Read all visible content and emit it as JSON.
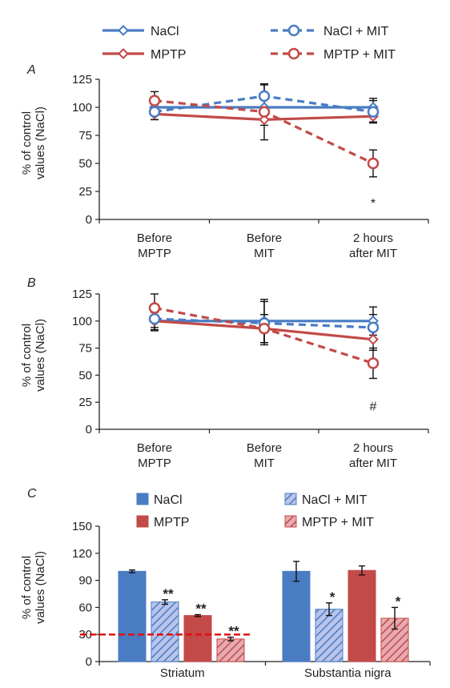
{
  "colors": {
    "nacl": "#4a7cc4",
    "mptp": "#c24a48",
    "nacl_mit_fill": "#b9c4ea",
    "mptp_mit_fill": "#e7aab0",
    "hatch": "#ffffff",
    "reference_line": "#e01010",
    "axis": "#222222"
  },
  "chart_data": [
    {
      "type": "line",
      "panel_label": "A",
      "ylabel": "% of control values (NaCl)",
      "ylim": [
        0,
        125
      ],
      "yticks": [
        0,
        25,
        50,
        75,
        100,
        125
      ],
      "categories": [
        "Before MPTP",
        "Before MIT",
        "2 hours after MIT"
      ],
      "category_lines": [
        [
          "Before",
          "MPTP"
        ],
        [
          "Before",
          "MIT"
        ],
        [
          "2 hours",
          "after MIT"
        ]
      ],
      "legend": [
        "NaCl",
        "MPTP",
        "NaCl + MIT",
        "MPTP + MIT"
      ],
      "grid": false,
      "series": [
        {
          "name": "NaCl",
          "color": "nacl",
          "dashed": false,
          "marker": "diamond",
          "values": [
            100,
            100,
            100
          ],
          "errors": [
            7,
            7,
            8
          ]
        },
        {
          "name": "MPTP",
          "color": "mptp",
          "dashed": false,
          "marker": "diamond",
          "values": [
            94,
            89,
            92
          ],
          "errors": [
            5,
            5,
            5
          ]
        },
        {
          "name": "NaCl + MIT",
          "color": "nacl",
          "dashed": true,
          "marker": "circle",
          "values": [
            96,
            110,
            96
          ],
          "errors": [
            7,
            10,
            10
          ]
        },
        {
          "name": "MPTP + MIT",
          "color": "mptp",
          "dashed": true,
          "marker": "circle",
          "values": [
            106,
            96,
            50
          ],
          "errors": [
            8,
            25,
            12
          ]
        }
      ],
      "annotations": [
        {
          "text": "*",
          "category": 2,
          "value": 15
        }
      ]
    },
    {
      "type": "line",
      "panel_label": "B",
      "ylabel": "% of control values (NaCl)",
      "ylim": [
        0,
        125
      ],
      "yticks": [
        0,
        25,
        50,
        75,
        100,
        125
      ],
      "categories": [
        "Before MPTP",
        "Before MIT",
        "2 hours after MIT"
      ],
      "category_lines": [
        [
          "Before",
          "MPTP"
        ],
        [
          "Before",
          "MIT"
        ],
        [
          "2 hours",
          "after MIT"
        ]
      ],
      "grid": false,
      "series": [
        {
          "name": "NaCl",
          "color": "nacl",
          "dashed": false,
          "marker": "diamond",
          "values": [
            100,
            100,
            100
          ],
          "errors": [
            8,
            20,
            13
          ]
        },
        {
          "name": "MPTP",
          "color": "mptp",
          "dashed": false,
          "marker": "diamond",
          "values": [
            100,
            93,
            83
          ],
          "errors": [
            9,
            13,
            10
          ]
        },
        {
          "name": "NaCl + MIT",
          "color": "nacl",
          "dashed": true,
          "marker": "circle",
          "values": [
            102,
            98,
            94
          ],
          "errors": [
            8,
            20,
            12
          ]
        },
        {
          "name": "MPTP + MIT",
          "color": "mptp",
          "dashed": true,
          "marker": "circle",
          "values": [
            112,
            93,
            61
          ],
          "errors": [
            13,
            13,
            14
          ]
        }
      ],
      "annotations": [
        {
          "text": "#",
          "category": 2,
          "value": 22
        }
      ]
    },
    {
      "type": "bar",
      "panel_label": "C",
      "ylabel": "% of control values (NaCl)",
      "ylim": [
        0,
        150
      ],
      "yticks": [
        0,
        30,
        60,
        90,
        120,
        150
      ],
      "categories": [
        "Striatum",
        "Substantia nigra"
      ],
      "legend": [
        "NaCl",
        "MPTP",
        "NaCl + MIT",
        "MPTP + MIT"
      ],
      "grid": false,
      "reference_line": 30,
      "series": [
        {
          "name": "NaCl",
          "fill": "nacl",
          "hatched": false,
          "values": [
            100,
            100
          ],
          "errors": [
            1.5,
            11
          ],
          "labels": [
            "",
            ""
          ]
        },
        {
          "name": "NaCl + MIT",
          "fill": "nacl_mit_fill",
          "hatched": true,
          "values": [
            66,
            58
          ],
          "errors": [
            2.5,
            7
          ],
          "labels": [
            "**",
            "*"
          ]
        },
        {
          "name": "MPTP",
          "fill": "mptp",
          "hatched": false,
          "values": [
            51,
            101
          ],
          "errors": [
            1,
            5
          ],
          "labels": [
            "**",
            ""
          ]
        },
        {
          "name": "MPTP + MIT",
          "fill": "mptp_mit_fill",
          "hatched": true,
          "values": [
            25,
            48
          ],
          "errors": [
            2,
            12
          ],
          "labels": [
            "**",
            "*"
          ]
        }
      ]
    }
  ]
}
